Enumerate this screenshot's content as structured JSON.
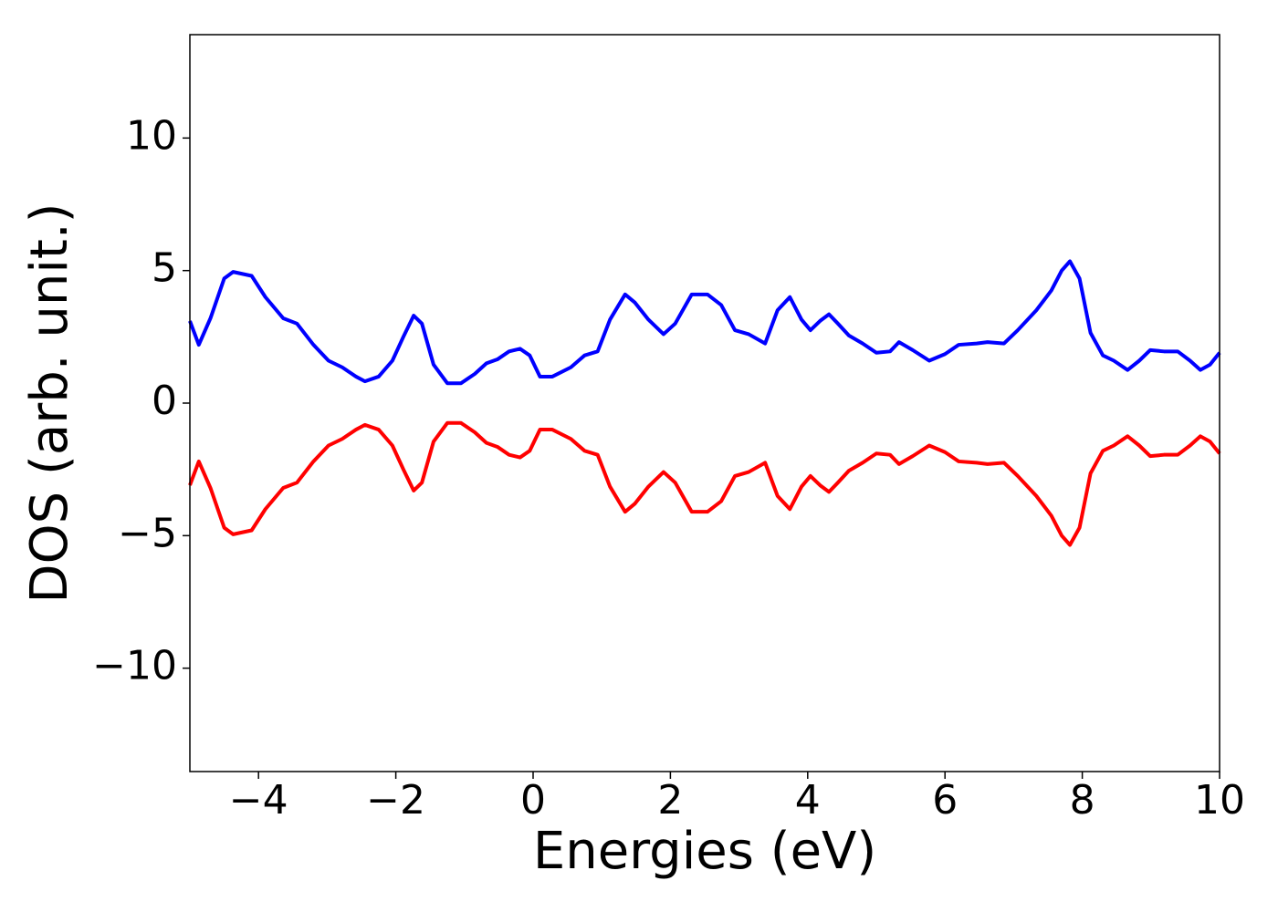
{
  "chart_data": {
    "type": "line",
    "xlabel": "Energies (eV)",
    "ylabel": "DOS (arb. unit.)",
    "x": [
      -5,
      -4.87,
      -4.7,
      -4.5,
      -4.37,
      -4.1,
      -3.9,
      -3.64,
      -3.44,
      -3.2,
      -2.98,
      -2.78,
      -2.58,
      -2.45,
      -2.25,
      -2.05,
      -1.89,
      -1.74,
      -1.62,
      -1.45,
      -1.25,
      -1.05,
      -0.85,
      -0.68,
      -0.52,
      -0.35,
      -0.19,
      -0.05,
      0.1,
      0.28,
      0.55,
      0.75,
      0.94,
      1.12,
      1.34,
      1.48,
      1.68,
      1.9,
      2.07,
      2.31,
      2.54,
      2.74,
      2.94,
      3.14,
      3.38,
      3.56,
      3.74,
      3.91,
      4.04,
      4.18,
      4.31,
      4.44,
      4.6,
      4.8,
      5.0,
      5.2,
      5.33,
      5.53,
      5.77,
      6.0,
      6.2,
      6.46,
      6.62,
      6.86,
      7.06,
      7.33,
      7.55,
      7.7,
      7.82,
      7.96,
      8.12,
      8.3,
      8.46,
      8.66,
      8.83,
      8.99,
      9.19,
      9.39,
      9.57,
      9.72,
      9.86,
      10
    ],
    "series": [
      {
        "color": "#0000ff",
        "values": [
          3.1,
          2.2,
          3.2,
          4.7,
          4.95,
          4.8,
          4.0,
          3.2,
          3.0,
          2.2,
          1.6,
          1.35,
          1.0,
          0.82,
          1.0,
          1.6,
          2.5,
          3.3,
          3.0,
          1.45,
          0.75,
          0.75,
          1.1,
          1.5,
          1.65,
          1.95,
          2.05,
          1.8,
          1.0,
          1.0,
          1.35,
          1.8,
          1.95,
          3.15,
          4.1,
          3.8,
          3.15,
          2.6,
          3.0,
          4.1,
          4.1,
          3.7,
          2.75,
          2.6,
          2.25,
          3.5,
          4.0,
          3.15,
          2.75,
          3.1,
          3.35,
          3.0,
          2.55,
          2.25,
          1.9,
          1.95,
          2.3,
          2.0,
          1.6,
          1.85,
          2.2,
          2.25,
          2.3,
          2.25,
          2.75,
          3.5,
          4.25,
          5.0,
          5.35,
          4.7,
          2.65,
          1.8,
          1.6,
          1.25,
          1.6,
          2.0,
          1.95,
          1.95,
          1.6,
          1.25,
          1.45,
          1.9
        ]
      },
      {
        "color": "#ff0000",
        "values": [
          -3.1,
          -2.2,
          -3.2,
          -4.7,
          -4.95,
          -4.8,
          -4.0,
          -3.2,
          -3.0,
          -2.2,
          -1.6,
          -1.35,
          -1.0,
          -0.82,
          -1.0,
          -1.6,
          -2.5,
          -3.3,
          -3.0,
          -1.45,
          -0.75,
          -0.75,
          -1.1,
          -1.5,
          -1.65,
          -1.95,
          -2.05,
          -1.8,
          -1.0,
          -1.0,
          -1.35,
          -1.8,
          -1.95,
          -3.15,
          -4.1,
          -3.8,
          -3.15,
          -2.6,
          -3.0,
          -4.1,
          -4.1,
          -3.7,
          -2.75,
          -2.6,
          -2.25,
          -3.5,
          -4.0,
          -3.15,
          -2.75,
          -3.1,
          -3.35,
          -3.0,
          -2.55,
          -2.25,
          -1.9,
          -1.95,
          -2.3,
          -2.0,
          -1.6,
          -1.85,
          -2.2,
          -2.25,
          -2.3,
          -2.25,
          -2.75,
          -3.5,
          -4.25,
          -5.0,
          -5.35,
          -4.7,
          -2.65,
          -1.8,
          -1.6,
          -1.25,
          -1.6,
          -2.0,
          -1.95,
          -1.95,
          -1.6,
          -1.25,
          -1.45,
          -1.9
        ]
      }
    ],
    "xlim": [
      -5,
      10
    ],
    "xticks": [
      {
        "value": -4,
        "label": "−4"
      },
      {
        "value": -2,
        "label": "−2"
      },
      0,
      2,
      4,
      6,
      8,
      10
    ],
    "ylim": [
      -13.9,
      13.9
    ],
    "yticks": [
      {
        "value": -10,
        "label": "−10"
      },
      {
        "value": -5,
        "label": "−5"
      },
      0,
      5,
      10
    ],
    "grid": false
  }
}
